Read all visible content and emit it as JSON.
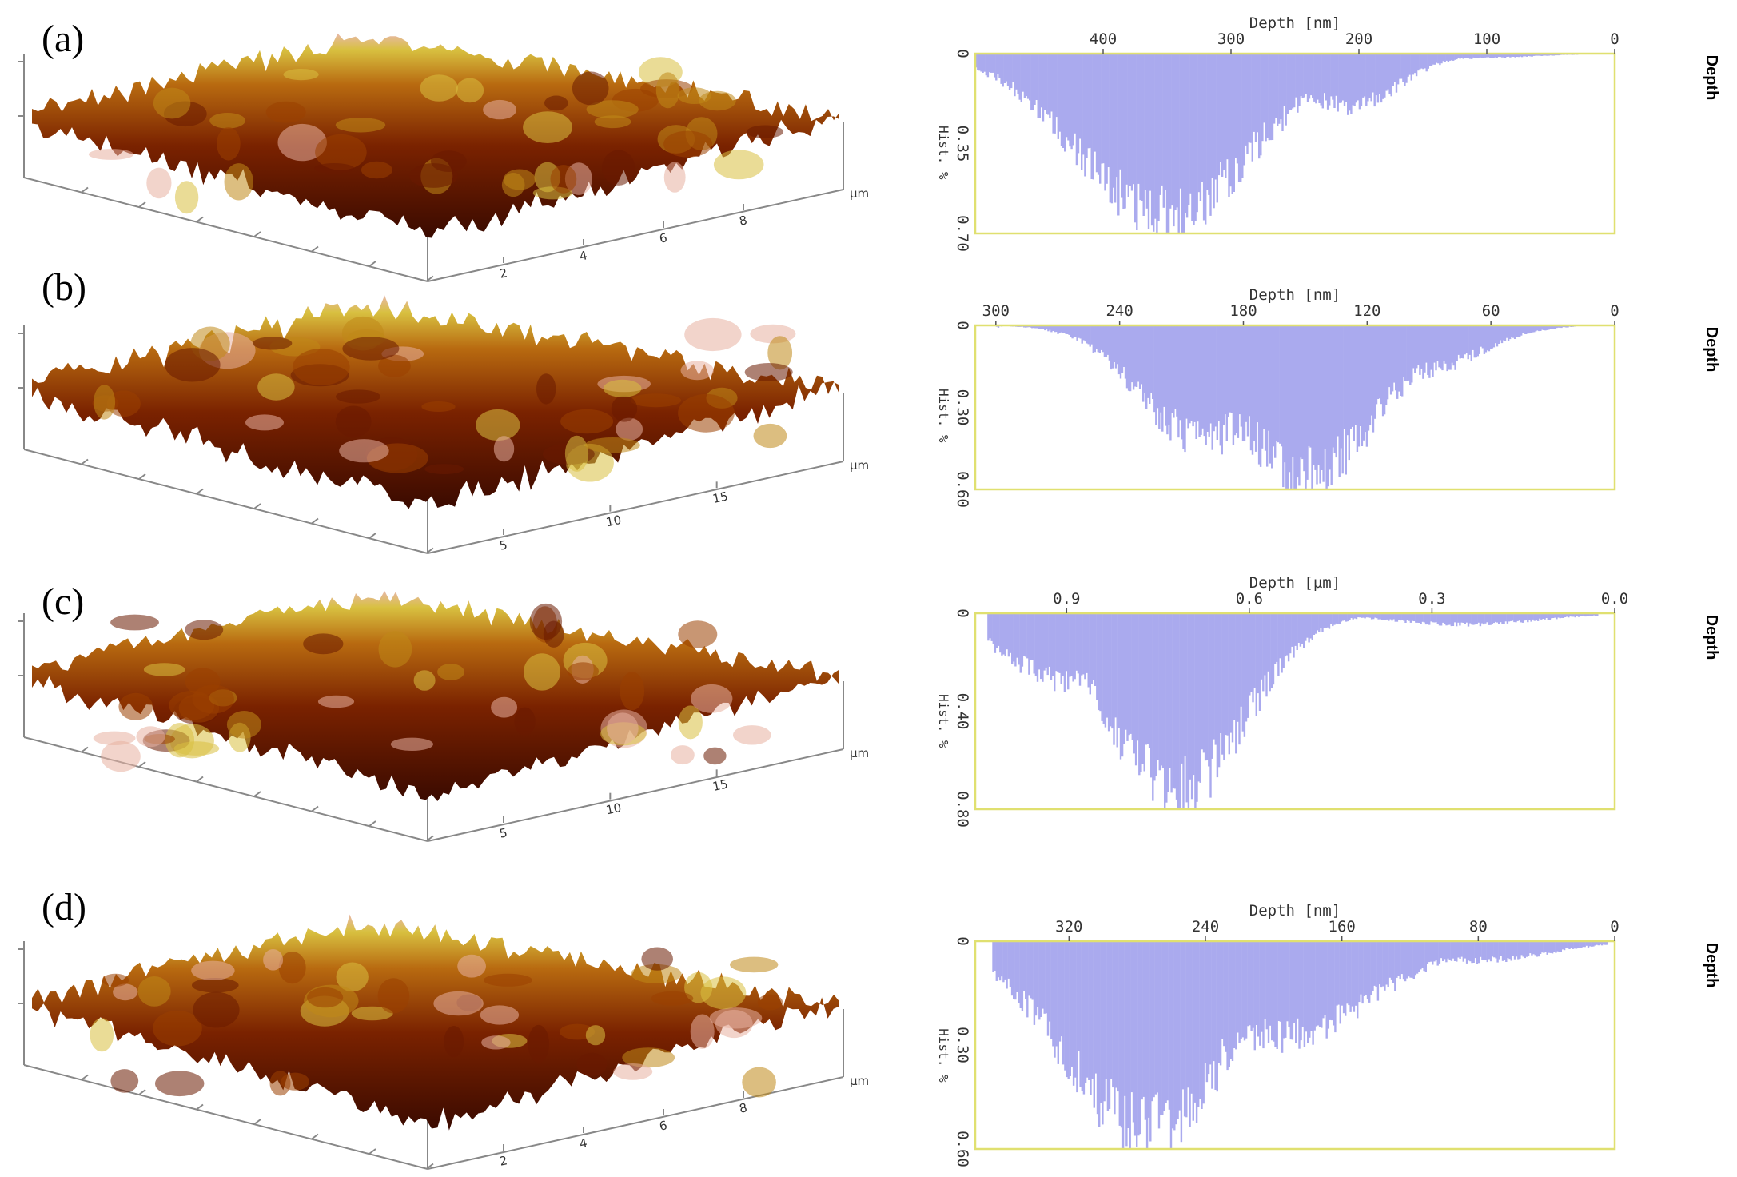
{
  "colors": {
    "hist_fill": "#aaaaee",
    "hist_frame": "#e0e070",
    "surface_dark": "#4a0e00",
    "surface_mid": "#8b2a00",
    "surface_light": "#c8a020",
    "surface_peak": "#e8b0a0"
  },
  "panels": [
    {
      "label": "(a)",
      "surface": {
        "unit_label": "µm",
        "ticks": [
          "2",
          "4",
          "6",
          "8"
        ],
        "roughness": 0.55,
        "seed": 11
      },
      "side_label": "Depth",
      "chart_data": {
        "type": "bar",
        "title": "Depth [nm]",
        "ylabel": "Hist. %",
        "xlim": [
          500,
          0
        ],
        "xticks": [
          "400",
          "300",
          "200",
          "100",
          "0"
        ],
        "xtick_values": [
          400,
          300,
          200,
          100,
          0
        ],
        "ylim": [
          0,
          0.7
        ],
        "yticks": [
          "0",
          "0.35",
          "0.70"
        ],
        "yticks_values": [
          0,
          0.35,
          0.7
        ],
        "peaks": [
          {
            "center": 352,
            "width": 68,
            "height": 0.68
          },
          {
            "center": 210,
            "width": 40,
            "height": 0.22
          },
          {
            "center": 120,
            "width": 50,
            "height": 0.02
          }
        ],
        "support": [
          500,
          30
        ]
      }
    },
    {
      "label": "(b)",
      "surface": {
        "unit_label": "µm",
        "ticks": [
          "5",
          "10",
          "15"
        ],
        "roughness": 0.7,
        "seed": 23
      },
      "side_label": "Depth",
      "chart_data": {
        "type": "bar",
        "title": "Depth [nm]",
        "ylabel": "Hist. %",
        "xlim": [
          310,
          0
        ],
        "xticks": [
          "300",
          "240",
          "180",
          "120",
          "60",
          "0"
        ],
        "xtick_values": [
          300,
          240,
          180,
          120,
          60,
          0
        ],
        "ylim": [
          0,
          0.6
        ],
        "yticks": [
          "0",
          "0.30",
          "0.60"
        ],
        "yticks_values": [
          0,
          0.3,
          0.6
        ],
        "peaks": [
          {
            "center": 200,
            "width": 30,
            "height": 0.45
          },
          {
            "center": 150,
            "width": 35,
            "height": 0.58
          },
          {
            "center": 95,
            "width": 28,
            "height": 0.18
          }
        ],
        "support": [
          300,
          20
        ]
      }
    },
    {
      "label": "(c)",
      "surface": {
        "unit_label": "µm",
        "ticks": [
          "5",
          "10",
          "15"
        ],
        "roughness": 0.5,
        "seed": 37
      },
      "side_label": "Depth",
      "chart_data": {
        "type": "bar",
        "title": "Depth [µm]",
        "ylabel": "Hist. %",
        "xlim": [
          1.05,
          0
        ],
        "xticks": [
          "0.9",
          "0.6",
          "0.3",
          "0.0"
        ],
        "xtick_values": [
          0.9,
          0.6,
          0.3,
          0.0
        ],
        "ylim": [
          0,
          0.8
        ],
        "yticks": [
          "0",
          "0.40",
          "0.80"
        ],
        "yticks_values": [
          0,
          0.4,
          0.8
        ],
        "peaks": [
          {
            "center": 0.72,
            "width": 0.11,
            "height": 0.78
          },
          {
            "center": 0.9,
            "width": 0.1,
            "height": 0.3
          },
          {
            "center": 0.25,
            "width": 0.12,
            "height": 0.05
          }
        ],
        "support": [
          1.03,
          0.03
        ]
      }
    },
    {
      "label": "(d)",
      "surface": {
        "unit_label": "µm",
        "ticks": [
          "2",
          "4",
          "6",
          "8"
        ],
        "roughness": 0.6,
        "seed": 53
      },
      "side_label": "Depth",
      "chart_data": {
        "type": "bar",
        "title": "Depth [nm]",
        "ylabel": "Hist. %",
        "xlim": [
          375,
          0
        ],
        "xticks": [
          "320",
          "240",
          "160",
          "80",
          "0"
        ],
        "xtick_values": [
          320,
          240,
          160,
          80,
          0
        ],
        "ylim": [
          0,
          0.6
        ],
        "yticks": [
          "0",
          "0.30",
          "0.60"
        ],
        "yticks_values": [
          0,
          0.3,
          0.6
        ],
        "peaks": [
          {
            "center": 275,
            "width": 48,
            "height": 0.58
          },
          {
            "center": 200,
            "width": 55,
            "height": 0.3
          },
          {
            "center": 80,
            "width": 40,
            "height": 0.06
          }
        ],
        "support": [
          365,
          5
        ]
      }
    }
  ]
}
